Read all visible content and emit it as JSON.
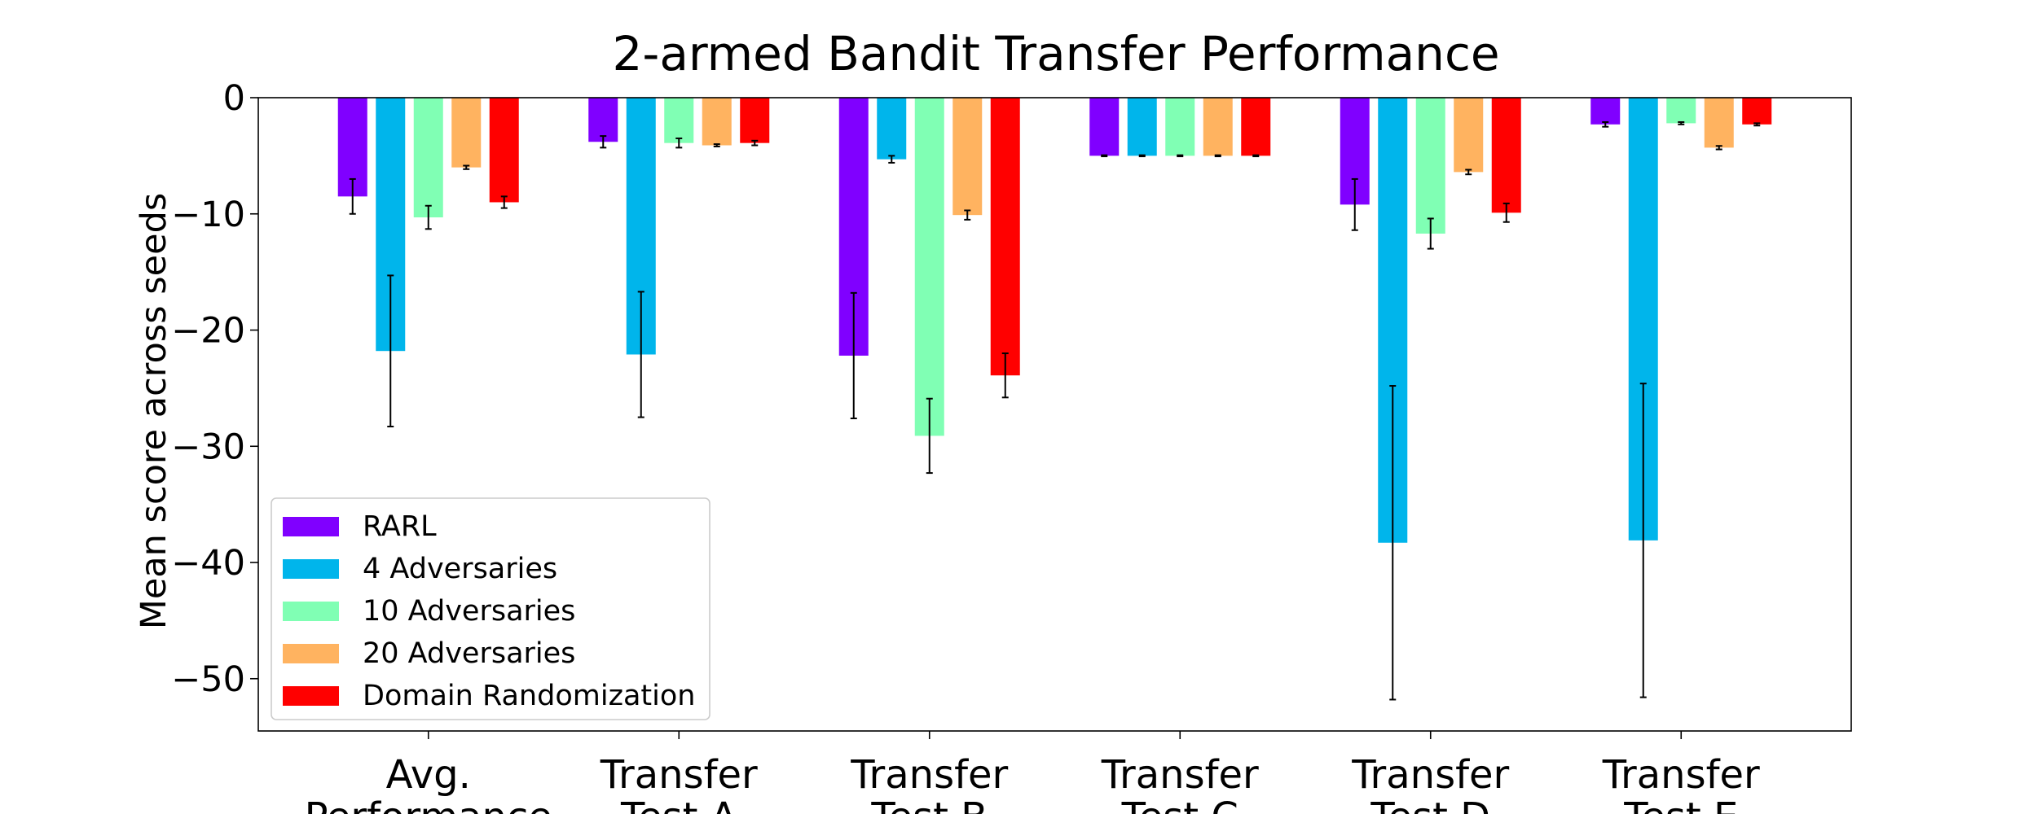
{
  "chart_data": {
    "type": "bar",
    "title": "2-armed Bandit Transfer Performance",
    "xlabel": "",
    "ylabel": "Mean score across seeds",
    "ylim": [
      -54.5,
      0
    ],
    "yticks": [
      0,
      -10,
      -20,
      -30,
      -40,
      -50
    ],
    "ytick_labels": [
      "0",
      "−10",
      "−20",
      "−30",
      "−40",
      "−50"
    ],
    "categories": [
      [
        "Avg.",
        "Performance"
      ],
      [
        "Transfer",
        "Test A"
      ],
      [
        "Transfer",
        "Test B"
      ],
      [
        "Transfer",
        "Test C"
      ],
      [
        "Transfer",
        "Test D"
      ],
      [
        "Transfer",
        "Test E"
      ]
    ],
    "series": [
      {
        "name": "RARL",
        "color": "#8000ff",
        "values": [
          -8.5,
          -3.8,
          -22.2,
          -5.0,
          -9.2,
          -2.3
        ],
        "errors": [
          1.5,
          0.5,
          5.4,
          0.05,
          2.2,
          0.2
        ]
      },
      {
        "name": "4 Adversaries",
        "color": "#00b5eb",
        "values": [
          -21.8,
          -22.1,
          -5.3,
          -5.0,
          -38.3,
          -38.1
        ],
        "errors": [
          6.5,
          5.4,
          0.3,
          0.05,
          13.5,
          13.5
        ]
      },
      {
        "name": "10 Adversaries",
        "color": "#80ffb4",
        "values": [
          -10.3,
          -3.9,
          -29.1,
          -5.0,
          -11.7,
          -2.2
        ],
        "errors": [
          1.0,
          0.4,
          3.2,
          0.05,
          1.3,
          0.1
        ]
      },
      {
        "name": "20 Adversaries",
        "color": "#ffb360",
        "values": [
          -6.0,
          -4.1,
          -10.1,
          -5.0,
          -6.4,
          -4.3
        ],
        "errors": [
          0.15,
          0.1,
          0.4,
          0.05,
          0.2,
          0.15
        ]
      },
      {
        "name": "Domain Randomization",
        "color": "#ff0000",
        "values": [
          -9.0,
          -3.9,
          -23.9,
          -5.0,
          -9.9,
          -2.3
        ],
        "errors": [
          0.5,
          0.2,
          1.9,
          0.05,
          0.8,
          0.1
        ]
      }
    ],
    "grid": false,
    "legend_position": "lower-left",
    "error_bars": true
  }
}
